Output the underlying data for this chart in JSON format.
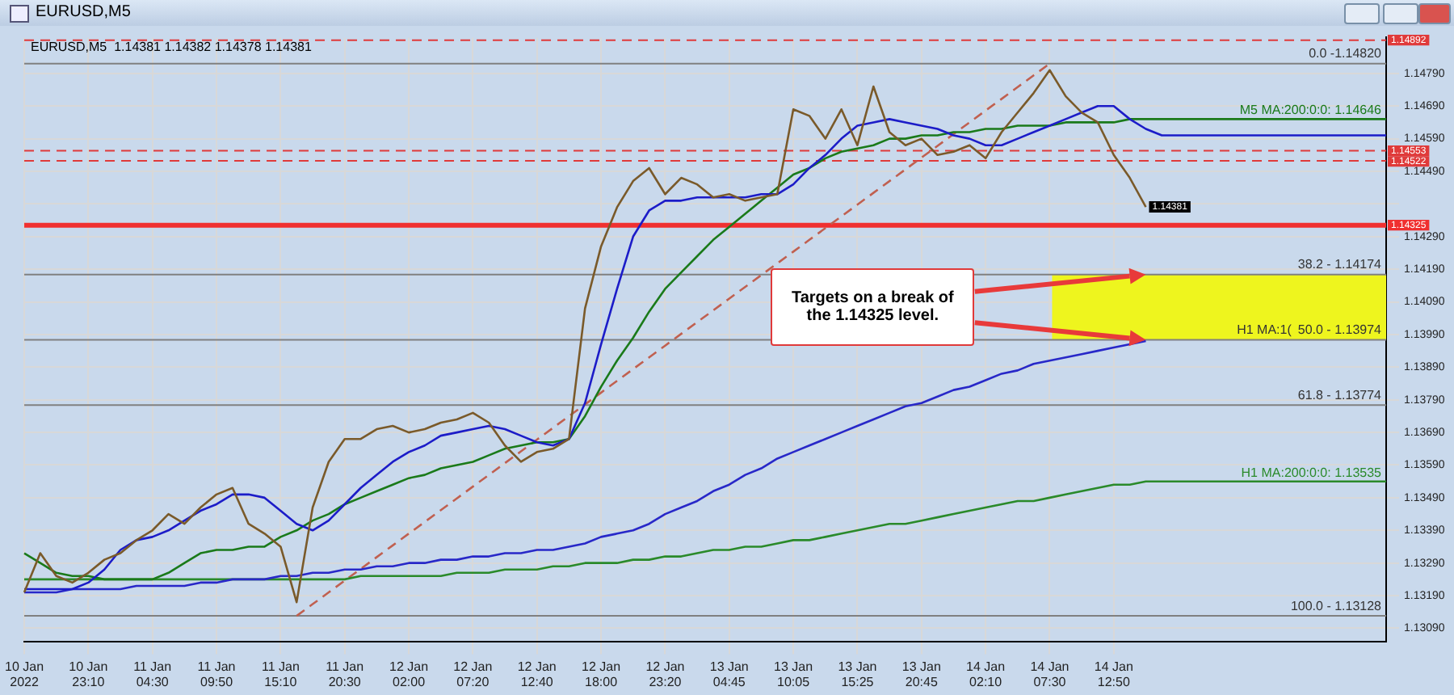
{
  "chart_data": {
    "type": "line",
    "title": "EURUSD,M5",
    "subtitle": "EURUSD,M5  1.14381 1.14382 1.14378 1.14381",
    "categories": [
      "10 Jan 2022",
      null,
      null,
      null,
      "10 Jan 23:10",
      null,
      null,
      null,
      "11 Jan 04:30",
      null,
      null,
      null,
      "11 Jan 09:50",
      null,
      null,
      null,
      "11 Jan 15:10",
      null,
      null,
      null,
      "11 Jan 20:30",
      null,
      null,
      null,
      "12 Jan 02:00",
      null,
      null,
      null,
      "12 Jan 07:20",
      null,
      null,
      null,
      "12 Jan 12:40",
      null,
      null,
      null,
      "12 Jan 18:00",
      null,
      null,
      null,
      "12 Jan 23:20",
      null,
      null,
      null,
      "13 Jan 04:45",
      null,
      null,
      null,
      "13 Jan 10:05",
      null,
      null,
      null,
      "13 Jan 15:25",
      null,
      null,
      null,
      "13 Jan 20:45",
      null,
      null,
      null,
      "14 Jan 02:10",
      null,
      null,
      null,
      "14 Jan 07:30",
      null,
      null,
      null,
      "14 Jan 12:50",
      null,
      null,
      null,
      null,
      null,
      null,
      null,
      null,
      null,
      null,
      null,
      null,
      null,
      null,
      null,
      null,
      null
    ],
    "ylim": [
      1.1305,
      1.149
    ],
    "yticks": [
      {
        "value": 1.1309,
        "label": "1.13090"
      },
      {
        "value": 1.1319,
        "label": "1.13190"
      },
      {
        "value": 1.1329,
        "label": "1.13290"
      },
      {
        "value": 1.1339,
        "label": "1.13390"
      },
      {
        "value": 1.1349,
        "label": "1.13490"
      },
      {
        "value": 1.1359,
        "label": "1.13590"
      },
      {
        "value": 1.1369,
        "label": "1.13690"
      },
      {
        "value": 1.1379,
        "label": "1.13790"
      },
      {
        "value": 1.1389,
        "label": "1.13890"
      },
      {
        "value": 1.1399,
        "label": "1.13990"
      },
      {
        "value": 1.1409,
        "label": "1.14090"
      },
      {
        "value": 1.1419,
        "label": "1.14190"
      },
      {
        "value": 1.1429,
        "label": "1.14290"
      },
      {
        "value": 1.1439,
        "label": null
      },
      {
        "value": 1.1449,
        "label": "1.14490"
      },
      {
        "value": 1.1459,
        "label": "1.14590"
      },
      {
        "value": 1.1469,
        "label": "1.14690"
      },
      {
        "value": 1.1479,
        "label": "1.14790"
      }
    ],
    "grid": true,
    "legend": false,
    "marker": "none",
    "series": [
      {
        "color": "#7a5a2a",
        "values": [
          1.132,
          1.1332,
          1.1325,
          1.1323,
          1.1326,
          1.133,
          1.1332,
          1.1336,
          1.1339,
          1.1344,
          1.1341,
          1.1346,
          1.135,
          1.1352,
          1.1341,
          1.1338,
          1.1334,
          1.1317,
          1.1346,
          1.136,
          1.1367,
          1.1367,
          1.137,
          1.1371,
          1.1369,
          1.137,
          1.1372,
          1.1373,
          1.1375,
          1.1372,
          1.1365,
          1.136,
          1.1363,
          1.1364,
          1.1367,
          1.1407,
          1.1426,
          1.1438,
          1.1446,
          1.145,
          1.1442,
          1.1447,
          1.1445,
          1.1441,
          1.1442,
          1.144,
          1.1441,
          1.1442,
          1.1468,
          1.1466,
          1.1459,
          1.1468,
          1.1457,
          1.1475,
          1.1461,
          1.1457,
          1.1459,
          1.1454,
          1.1455,
          1.1457,
          1.1453,
          1.1461,
          1.1467,
          1.1473,
          1.148,
          1.1472,
          1.1467,
          1.1464,
          1.1454,
          1.1447,
          1.14381,
          null,
          null,
          null,
          null,
          null,
          null,
          null,
          null,
          null,
          null,
          null,
          null,
          null,
          null,
          null
        ],
        "value_labels": [
          null,
          null,
          null,
          null,
          null,
          null,
          null,
          null,
          null,
          null,
          null,
          null,
          null,
          null,
          null,
          null,
          null,
          null,
          null,
          null,
          null,
          null,
          null,
          null,
          null,
          null,
          null,
          null,
          null,
          null,
          null,
          null,
          null,
          null,
          null,
          null,
          null,
          null,
          null,
          null,
          null,
          null,
          null,
          null,
          null,
          null,
          null,
          null,
          null,
          null,
          null,
          null,
          null,
          null,
          null,
          null,
          null,
          null,
          null,
          null,
          null,
          null,
          null,
          null,
          null,
          null,
          null,
          null,
          null,
          null,
          "1.14381",
          null,
          null,
          null,
          null,
          null,
          null,
          null,
          null,
          null,
          null,
          null,
          null,
          null,
          null,
          null
        ]
      },
      {
        "color": "#1c1cc8",
        "values": [
          1.1321,
          1.1321,
          1.1321,
          1.1321,
          1.1323,
          1.1327,
          1.1333,
          1.1336,
          1.1337,
          1.1339,
          1.1342,
          1.1345,
          1.1347,
          1.135,
          1.135,
          1.1349,
          1.1345,
          1.1341,
          1.1339,
          1.1342,
          1.1347,
          1.1352,
          1.1356,
          1.136,
          1.1363,
          1.1365,
          1.1368,
          1.1369,
          1.137,
          1.1371,
          1.137,
          1.1368,
          1.1366,
          1.1365,
          1.1367,
          1.1378,
          1.1396,
          1.1413,
          1.1429,
          1.1437,
          1.144,
          1.144,
          1.1441,
          1.1441,
          1.1441,
          1.1441,
          1.1442,
          1.1442,
          1.1445,
          1.145,
          1.1454,
          1.1459,
          1.1463,
          1.1464,
          1.1465,
          1.1464,
          1.1463,
          1.1462,
          1.146,
          1.1459,
          1.1457,
          1.1457,
          1.1459,
          1.1461,
          1.1463,
          1.1465,
          1.1467,
          1.1469,
          1.1469,
          1.1465,
          1.1462,
          1.146,
          1.146,
          1.146,
          1.146,
          1.146,
          1.146,
          1.146,
          1.146,
          1.146,
          1.146,
          1.146,
          1.146,
          1.146,
          1.146,
          1.146
        ]
      },
      {
        "color": "#1a7a1a",
        "values": [
          1.1332,
          1.1329,
          1.1326,
          1.1325,
          1.1325,
          1.1324,
          1.1324,
          1.1324,
          1.1324,
          1.1326,
          1.1329,
          1.1332,
          1.1333,
          1.1333,
          1.1334,
          1.1334,
          1.1337,
          1.1339,
          1.1342,
          1.1344,
          1.1347,
          1.1349,
          1.1351,
          1.1353,
          1.1355,
          1.1356,
          1.1358,
          1.1359,
          1.136,
          1.1362,
          1.1364,
          1.1365,
          1.1366,
          1.1366,
          1.1367,
          1.1374,
          1.1383,
          1.1391,
          1.1398,
          1.1406,
          1.1413,
          1.1418,
          1.1423,
          1.1428,
          1.1432,
          1.1436,
          1.144,
          1.1444,
          1.1448,
          1.145,
          1.1453,
          1.1455,
          1.1456,
          1.1457,
          1.1459,
          1.1459,
          1.146,
          1.146,
          1.1461,
          1.1461,
          1.1462,
          1.1462,
          1.1463,
          1.1463,
          1.1463,
          1.1464,
          1.1464,
          1.1464,
          1.1464,
          1.1465,
          1.1465,
          1.1465,
          1.1465,
          1.1465,
          1.1465,
          1.1465,
          1.1465,
          1.1465,
          1.1465,
          1.1465,
          1.1465,
          1.1465,
          1.1465,
          1.1465,
          1.1465,
          1.1465
        ]
      },
      {
        "color": "#2828c8",
        "values": [
          1.132,
          1.132,
          1.132,
          1.1321,
          1.1321,
          1.1321,
          1.1321,
          1.1322,
          1.1322,
          1.1322,
          1.1322,
          1.1323,
          1.1323,
          1.1324,
          1.1324,
          1.1324,
          1.1325,
          1.1325,
          1.1326,
          1.1326,
          1.1327,
          1.1327,
          1.1328,
          1.1328,
          1.1329,
          1.1329,
          1.133,
          1.133,
          1.1331,
          1.1331,
          1.1332,
          1.1332,
          1.1333,
          1.1333,
          1.1334,
          1.1335,
          1.1337,
          1.1338,
          1.1339,
          1.1341,
          1.1344,
          1.1346,
          1.1348,
          1.1351,
          1.1353,
          1.1356,
          1.1358,
          1.1361,
          1.1363,
          1.1365,
          1.1367,
          1.1369,
          1.1371,
          1.1373,
          1.1375,
          1.1377,
          1.1378,
          1.138,
          1.1382,
          1.1383,
          1.1385,
          1.1387,
          1.1388,
          1.139,
          1.1391,
          1.1392,
          1.1393,
          1.1394,
          1.1395,
          1.1396,
          1.1397,
          null,
          null,
          null,
          null,
          null,
          null,
          null,
          null,
          null,
          null,
          null,
          null,
          null,
          null,
          null
        ]
      },
      {
        "color": "#2a8a2a",
        "values": [
          1.1324,
          1.1324,
          1.1324,
          1.1324,
          1.1324,
          1.1324,
          1.1324,
          1.1324,
          1.1324,
          1.1324,
          1.1324,
          1.1324,
          1.1324,
          1.1324,
          1.1324,
          1.1324,
          1.1324,
          1.1324,
          1.1324,
          1.1324,
          1.1324,
          1.1325,
          1.1325,
          1.1325,
          1.1325,
          1.1325,
          1.1325,
          1.1326,
          1.1326,
          1.1326,
          1.1327,
          1.1327,
          1.1327,
          1.1328,
          1.1328,
          1.1329,
          1.1329,
          1.1329,
          1.133,
          1.133,
          1.1331,
          1.1331,
          1.1332,
          1.1333,
          1.1333,
          1.1334,
          1.1334,
          1.1335,
          1.1336,
          1.1336,
          1.1337,
          1.1338,
          1.1339,
          1.134,
          1.1341,
          1.1341,
          1.1342,
          1.1343,
          1.1344,
          1.1345,
          1.1346,
          1.1347,
          1.1348,
          1.1348,
          1.1349,
          1.135,
          1.1351,
          1.1352,
          1.1353,
          1.1353,
          1.1354,
          1.1354,
          1.1354,
          1.1354,
          1.1354,
          1.1354,
          1.1354,
          1.1354,
          1.1354,
          1.1354,
          1.1354,
          1.1354,
          1.1354,
          1.1354,
          1.1354,
          1.1354
        ]
      },
      {
        "color": "#c06050",
        "line_style": "dashed",
        "values": [
          null,
          null,
          null,
          null,
          null,
          null,
          null,
          null,
          null,
          null,
          null,
          null,
          null,
          null,
          null,
          null,
          null,
          1.13128,
          1.13164,
          1.132,
          1.13236,
          1.13272,
          1.13308,
          1.13344,
          1.1338,
          1.13416,
          1.13452,
          1.13488,
          1.13524,
          1.1356,
          1.13596,
          1.13632,
          1.13668,
          1.13704,
          1.1374,
          1.13776,
          1.13812,
          1.13848,
          1.13884,
          1.1392,
          1.13956,
          1.13992,
          1.14028,
          1.14064,
          1.141,
          1.14136,
          1.14172,
          1.14208,
          1.14244,
          1.1428,
          1.14316,
          1.14352,
          1.14388,
          1.14424,
          1.1446,
          1.14496,
          1.14532,
          1.14568,
          1.14604,
          1.1464,
          1.14676,
          1.14712,
          1.14748,
          1.14784,
          1.1482,
          null,
          null,
          null,
          null,
          null,
          null,
          null,
          null,
          null,
          null,
          null,
          null,
          null,
          null,
          null,
          null,
          null,
          null,
          null,
          null,
          null
        ]
      }
    ],
    "ref_lines": [
      {
        "axis": "y",
        "value": 1.1482,
        "color": "#808080"
      },
      {
        "axis": "y",
        "value": 1.14174,
        "color": "#808080"
      },
      {
        "axis": "y",
        "value": 1.13974,
        "color": "#808080"
      },
      {
        "axis": "y",
        "value": 1.13774,
        "color": "#808080"
      },
      {
        "axis": "y",
        "value": 1.13128,
        "color": "#808080"
      },
      {
        "axis": "y",
        "value": 1.14892,
        "label": "1.14892",
        "color": "#e03a3a",
        "line_style": "dashed"
      },
      {
        "axis": "y",
        "value": 1.14553,
        "label": "1.14553",
        "color": "#e03a3a",
        "line_style": "dashed"
      },
      {
        "axis": "y",
        "value": 1.14522,
        "label": "1.14522",
        "color": "#e03a3a",
        "line_style": "dashed"
      },
      {
        "axis": "y",
        "value": 1.14325,
        "label": "1.14325",
        "color": "#f03030"
      }
    ],
    "bands": [
      {
        "axis": "y",
        "from": 1.13974,
        "to": 1.14174,
        "color": "#eef51e"
      }
    ],
    "annotations": [
      "Targets on a break of the 1.14325 level.",
      {
        "text": "0.0 -1.14820",
        "y": 1.1482
      },
      {
        "text": "38.2 - 1.14174",
        "y": 1.14174
      },
      {
        "text": "50.0 - 1.13974",
        "y": 1.13974
      },
      {
        "text": "H1 MA:1(",
        "y": 1.13974
      },
      {
        "text": "61.8 - 1.13774",
        "y": 1.13774
      },
      {
        "text": "100.0 - 1.13128",
        "y": 1.13128
      },
      {
        "text": "M5 MA:200:0:0: 1.14646",
        "y": 1.14646
      },
      {
        "text": "H1 MA:200:0:0: 1.13535",
        "y": 1.13535
      }
    ]
  }
}
